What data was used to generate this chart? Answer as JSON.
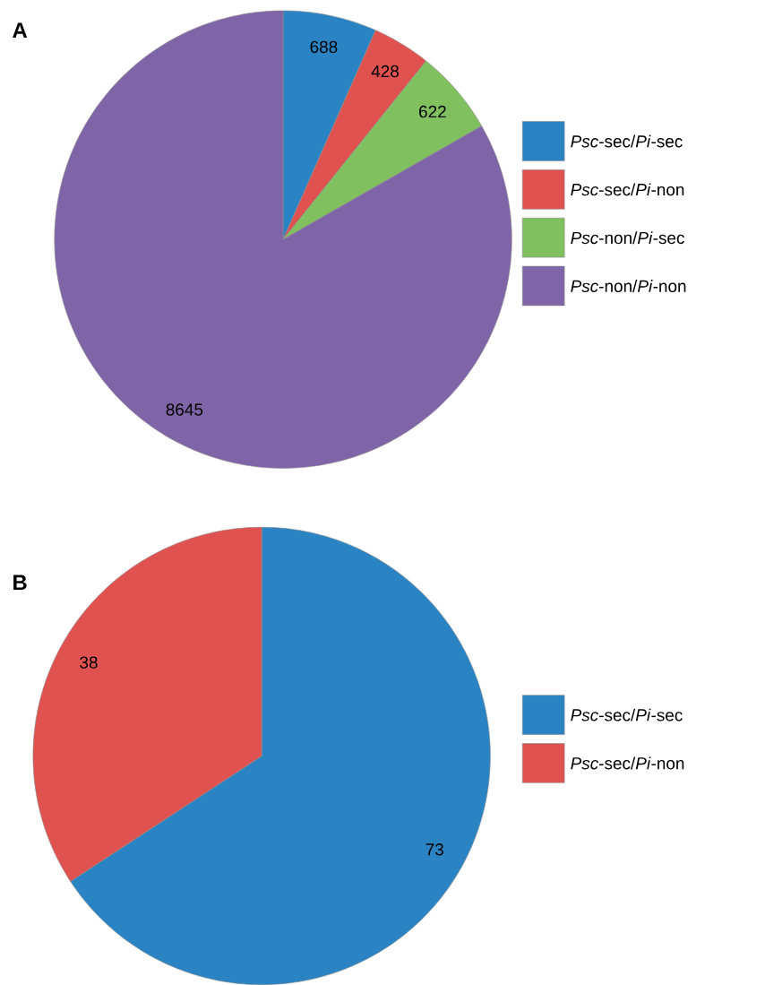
{
  "chart_data": [
    {
      "type": "pie",
      "title": "A",
      "categories": [
        "*Psc*-sec/*Pi*-sec",
        "*Psc*-sec/*Pi*-non",
        "*Psc*-non/*Pi*-sec",
        "*Psc*-non/*Pi*-non"
      ],
      "values": [
        688,
        428,
        622,
        8645
      ],
      "colors": [
        "#2a84c4",
        "#e0524f",
        "#80c05f",
        "#8064a8"
      ],
      "data_labels": true,
      "legend": "right"
    },
    {
      "type": "pie",
      "title": "B",
      "categories": [
        "*Psc*-sec/*Pi*-sec",
        "*Psc*-sec/*Pi*-non"
      ],
      "values": [
        73,
        38
      ],
      "colors": [
        "#2a84c4",
        "#e0524f"
      ],
      "data_labels": true,
      "legend": "right"
    }
  ]
}
